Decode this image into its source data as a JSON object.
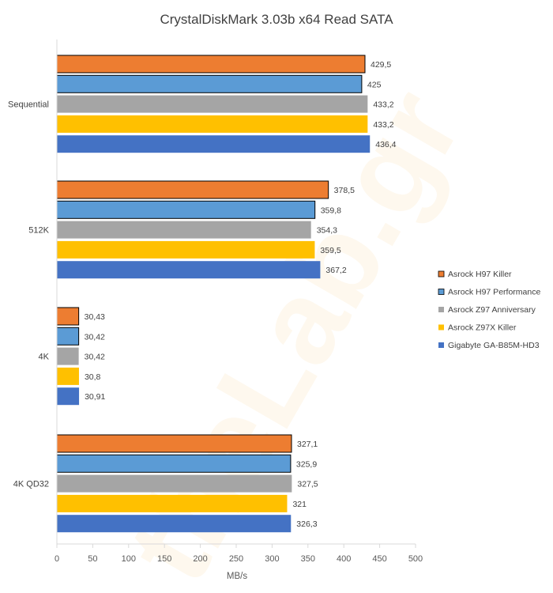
{
  "chart_data": {
    "type": "bar",
    "orientation": "horizontal",
    "title": "CrystalDiskMark 3.03b x64 Read SATA",
    "xlabel": "MB/s",
    "ylabel": "",
    "xlim": [
      0,
      500
    ],
    "xticks": [
      "0",
      "50",
      "100",
      "150",
      "200",
      "250",
      "300",
      "350",
      "400",
      "450",
      "500"
    ],
    "grid": false,
    "legend_position": "right",
    "categories": [
      "Sequential",
      "512K",
      "4K",
      "4K QD32"
    ],
    "series": [
      {
        "name": "Asrock H97 Killer",
        "color": "#ed7d31",
        "values": [
          429.5,
          378.5,
          30.43,
          327.1
        ],
        "labels": [
          "429,5",
          "378,5",
          "30,43",
          "327,1"
        ]
      },
      {
        "name": "Asrock H97 Performance",
        "color": "#5b9bd5",
        "values": [
          425,
          359.8,
          30.42,
          325.9
        ],
        "labels": [
          "425",
          "359,8",
          "30,42",
          "325,9"
        ]
      },
      {
        "name": "Asrock Z97 Anniversary",
        "color": "#a5a5a5",
        "values": [
          433.2,
          354.3,
          30.42,
          327.5
        ],
        "labels": [
          "433,2",
          "354,3",
          "30,42",
          "327,5"
        ]
      },
      {
        "name": "Asrock Z97X Killer",
        "color": "#ffc000",
        "values": [
          433.2,
          359.5,
          30.8,
          321
        ],
        "labels": [
          "433,2",
          "359,5",
          "30,8",
          "321"
        ]
      },
      {
        "name": "Gigabyte GA-B85M-HD3",
        "color": "#4472c4",
        "values": [
          436.4,
          367.2,
          30.91,
          326.3
        ],
        "labels": [
          "436,4",
          "367,2",
          "30,91",
          "326,3"
        ]
      }
    ]
  }
}
